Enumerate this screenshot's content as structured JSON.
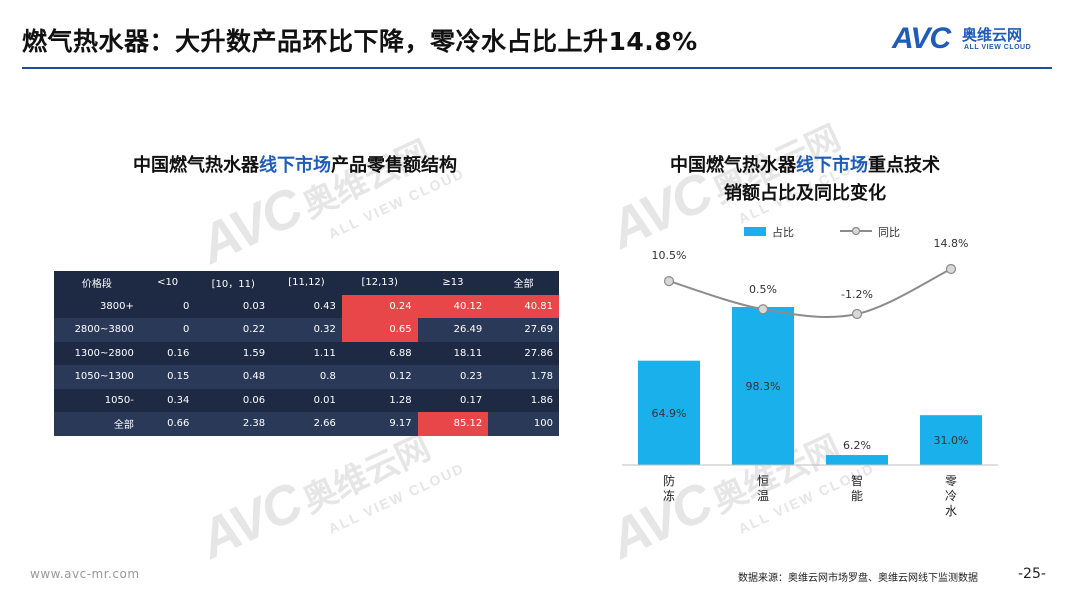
{
  "header": {
    "title": "燃气热水器：大升数产品环比下降，零冷水占比上升14.8%",
    "logo_mark": "AVC",
    "logo_cn": "奥维云网",
    "logo_en": "ALL VIEW CLOUD"
  },
  "watermark": {
    "mark": "AVC",
    "cn": "奥维云网",
    "en": "ALL VIEW CLOUD"
  },
  "left_panel": {
    "title_pre": "中国燃气热水器",
    "title_hl": "线下市场",
    "title_post": "产品零售额结构",
    "table": {
      "headers": [
        "价格段",
        "<10",
        "[10，11)",
        "[11,12)",
        "[12,13)",
        "≥13",
        "全部"
      ],
      "rows": [
        [
          "3800+",
          "0",
          "0.03",
          "0.43",
          "0.24",
          "40.12",
          "40.81"
        ],
        [
          "2800~3800",
          "0",
          "0.22",
          "0.32",
          "0.65",
          "26.49",
          "27.69"
        ],
        [
          "1300~2800",
          "0.16",
          "1.59",
          "1.11",
          "6.88",
          "18.11",
          "27.86"
        ],
        [
          "1050~1300",
          "0.15",
          "0.48",
          "0.8",
          "0.12",
          "0.23",
          "1.78"
        ],
        [
          "1050-",
          "0.34",
          "0.06",
          "0.01",
          "1.28",
          "0.17",
          "1.86"
        ],
        [
          "全部",
          "0.66",
          "2.38",
          "2.66",
          "9.17",
          "85.12",
          "100"
        ]
      ],
      "highlight_color": "#e8474a"
    }
  },
  "right_panel": {
    "title_line1_pre": "中国燃气热水器",
    "title_line1_hl": "线下市场",
    "title_line1_post": "重点技术",
    "title_line2": "销额占比及同比变化"
  },
  "chart_data": {
    "type": "bar",
    "categories": [
      "防冻",
      "恒温",
      "智能",
      "零冷水"
    ],
    "series": [
      {
        "name": "占比",
        "kind": "bar",
        "values": [
          64.9,
          98.3,
          6.2,
          31.0
        ],
        "labels": [
          "64.9%",
          "98.3%",
          "6.2%",
          "31.0%"
        ],
        "color": "#1ab0ec"
      },
      {
        "name": "同比",
        "kind": "line",
        "values": [
          10.5,
          0.5,
          -1.2,
          14.8
        ],
        "labels": [
          "10.5%",
          "0.5%",
          "-1.2%",
          "14.8%"
        ],
        "color": "#8c8c8c"
      }
    ],
    "legend_position": "top",
    "grid": false
  },
  "footer": {
    "url": "www.avc-mr.com",
    "source": "数据来源：奥维云网市场罗盘、奥维云网线下监测数据",
    "page": "-25-"
  }
}
